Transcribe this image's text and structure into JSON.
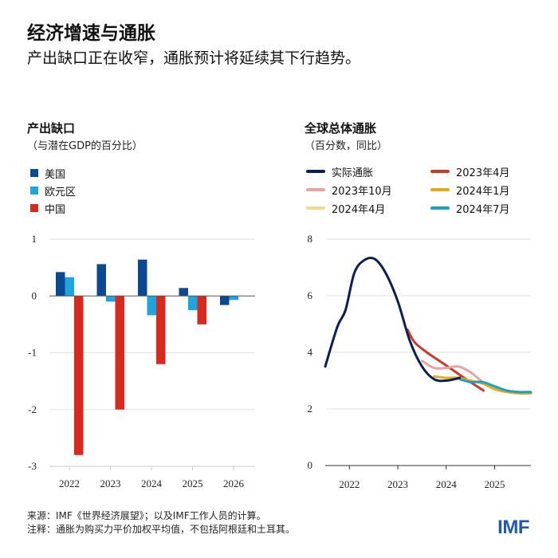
{
  "header": {
    "title": "经济增速与通胀",
    "subtitle": "产出缺口正在收窄，通胀预计将延续其下行趋势。"
  },
  "footer": {
    "source": "来源：IMF《世界经济展望》；以及IMF工作人员的计算。",
    "note": "注释：通胀为购买力平价加权平均值，不包括阿根廷和土耳其。",
    "logo": "IMF"
  },
  "chart_data": [
    {
      "type": "bar",
      "title": "产出缺口",
      "subtitle": "（与潜在GDP的百分比）",
      "categories": [
        "2022",
        "2023",
        "2024",
        "2025",
        "2026"
      ],
      "ylim": [
        -3,
        1
      ],
      "yticks": [
        "1",
        "0",
        "-1",
        "-2",
        "-3"
      ],
      "grid": true,
      "legend_placement": "top-left",
      "series": [
        {
          "name": "美国",
          "color": "#0b4a92",
          "values": [
            0.42,
            0.56,
            0.64,
            0.14,
            -0.16
          ]
        },
        {
          "name": "欧元区",
          "color": "#1ea4e0",
          "values": [
            0.33,
            -0.1,
            -0.34,
            -0.25,
            -0.07
          ]
        },
        {
          "name": "中国",
          "color": "#d9291c",
          "values": [
            -2.8,
            -2.0,
            -1.2,
            -0.5,
            null
          ]
        }
      ]
    },
    {
      "type": "line",
      "title": "全球总体通胀",
      "subtitle": "（百分数，同比）",
      "xlim": [
        2021.5,
        2025.75
      ],
      "ylim": [
        0,
        8
      ],
      "xticks": [
        "2022",
        "2023",
        "2024",
        "2025"
      ],
      "yticks": [
        "8",
        "6",
        "4",
        "2",
        "0"
      ],
      "grid": true,
      "legend_placement": "top",
      "series": [
        {
          "name": "实际通胀",
          "color": "#0d1f52",
          "x": [
            2021.5,
            2021.75,
            2021.92,
            2022.1,
            2022.3,
            2022.52,
            2022.75,
            2023.0,
            2023.25,
            2023.5,
            2023.75,
            2024.0,
            2024.28
          ],
          "y": [
            3.5,
            4.9,
            5.5,
            6.8,
            7.25,
            7.3,
            6.8,
            5.8,
            4.4,
            3.5,
            3.05,
            3.0,
            3.1
          ]
        },
        {
          "name": "2023年4月",
          "color": "#c93a2e",
          "x": [
            2023.2,
            2023.35,
            2023.6,
            2023.9,
            2024.2,
            2024.5,
            2024.77
          ],
          "y": [
            4.8,
            4.35,
            4.0,
            3.65,
            3.3,
            2.95,
            2.65
          ]
        },
        {
          "name": "2023年10月",
          "color": "#e8a3a3",
          "x": [
            2023.5,
            2023.75,
            2024.0,
            2024.25,
            2024.5,
            2024.75
          ],
          "y": [
            3.7,
            3.45,
            3.45,
            3.5,
            3.3,
            2.95
          ]
        },
        {
          "name": "2024年1月",
          "color": "#e0ac1e",
          "x": [
            2023.75,
            2024.0,
            2024.25,
            2024.5,
            2024.75,
            2025.0,
            2025.25,
            2025.5,
            2025.75
          ],
          "y": [
            3.15,
            3.1,
            3.1,
            3.0,
            2.9,
            2.7,
            2.6,
            2.55,
            2.55
          ]
        },
        {
          "name": "2024年4月",
          "color": "#f2dc8c",
          "x": [
            2024.0,
            2024.25,
            2024.5,
            2024.75,
            2025.0,
            2025.25,
            2025.5,
            2025.75
          ],
          "y": [
            3.05,
            3.05,
            3.0,
            2.9,
            2.72,
            2.62,
            2.58,
            2.58
          ]
        },
        {
          "name": "2024年7月",
          "color": "#1f9fc4",
          "x": [
            2024.28,
            2024.5,
            2024.75,
            2025.0,
            2025.25,
            2025.5,
            2025.75
          ],
          "y": [
            3.05,
            2.95,
            2.95,
            2.8,
            2.65,
            2.6,
            2.6
          ]
        }
      ]
    }
  ]
}
